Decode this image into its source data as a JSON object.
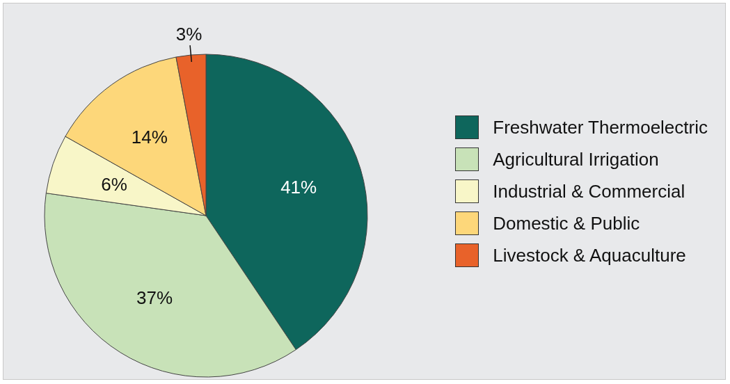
{
  "chart_data": {
    "type": "pie",
    "categories": [
      "Freshwater Thermoelectric",
      "Agricultural Irrigation",
      "Industrial & Commercial",
      "Domestic & Public",
      "Livestock & Aquaculture"
    ],
    "values": [
      41,
      37,
      6,
      14,
      3
    ],
    "colors": [
      "#0e665c",
      "#c8e2b8",
      "#f8f6c8",
      "#fdd77a",
      "#e8622a"
    ],
    "value_labels": [
      "41%",
      "37%",
      "6%",
      "14%",
      "3%"
    ],
    "legend": "right"
  }
}
